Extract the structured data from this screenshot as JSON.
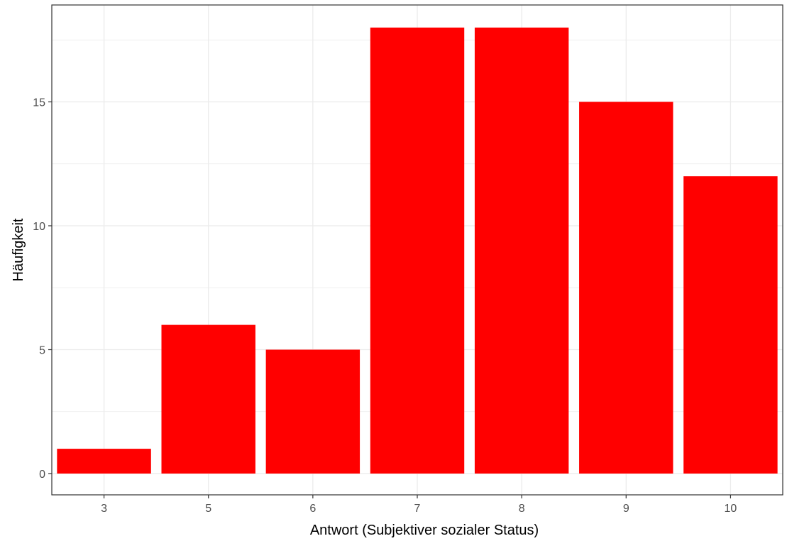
{
  "chart_data": {
    "type": "bar",
    "categories": [
      "3",
      "5",
      "6",
      "7",
      "8",
      "9",
      "10"
    ],
    "values": [
      1,
      6,
      5,
      18,
      18,
      15,
      12
    ],
    "title": "",
    "xlabel": "Antwort (Subjektiver sozialer Status)",
    "ylabel": "Häufigkeit",
    "ylim": [
      0,
      18
    ],
    "yticks": [
      0,
      5,
      10,
      15
    ],
    "ytick_labels": [
      "0",
      "5",
      "10",
      "15"
    ],
    "grid": true,
    "legend": "none",
    "bar_color": "#ff0000",
    "grid_color": "#ebebeb",
    "panel_border_color": "#333333",
    "tick_label_color": "#4d4d4d"
  }
}
